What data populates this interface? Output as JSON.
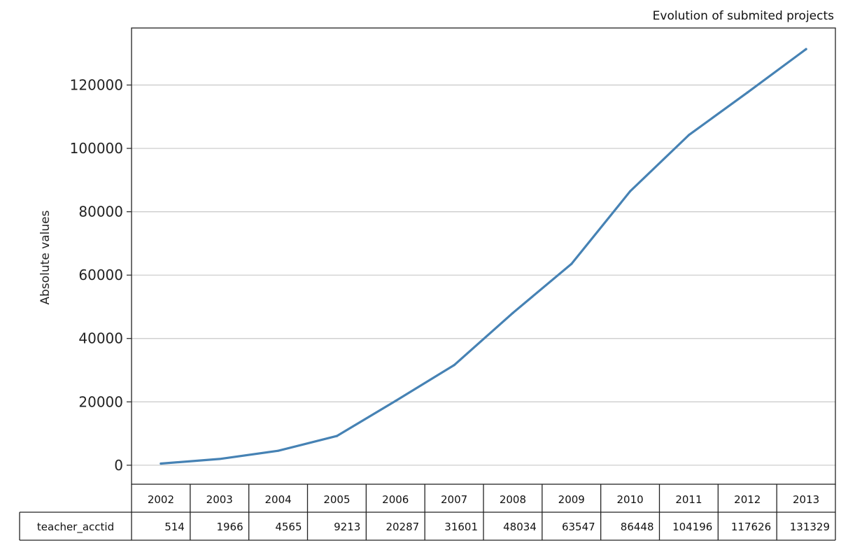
{
  "chart_data": {
    "type": "line",
    "title": "Evolution of submited projects",
    "xlabel": "",
    "ylabel": "Absolute values",
    "categories": [
      "2002",
      "2003",
      "2004",
      "2005",
      "2006",
      "2007",
      "2008",
      "2009",
      "2010",
      "2011",
      "2012",
      "2013"
    ],
    "series": [
      {
        "name": "teacher_acctid",
        "values": [
          514,
          1966,
          4565,
          9213,
          20287,
          31601,
          48034,
          63547,
          86448,
          104196,
          117626,
          131329
        ]
      }
    ],
    "ylim": [
      -6000,
      138000
    ],
    "yticks": [
      0,
      20000,
      40000,
      60000,
      80000,
      100000,
      120000
    ],
    "ytick_labels": [
      "0",
      "20000",
      "40000",
      "60000",
      "80000",
      "100000",
      "120000"
    ],
    "grid": "horizontal",
    "line_color": "#4682b4",
    "table": {
      "row_label": "teacher_acctid",
      "header": [
        "2002",
        "2003",
        "2004",
        "2005",
        "2006",
        "2007",
        "2008",
        "2009",
        "2010",
        "2011",
        "2012",
        "2013"
      ],
      "cells": [
        "514",
        "1966",
        "4565",
        "9213",
        "20287",
        "31601",
        "48034",
        "63547",
        "86448",
        "104196",
        "117626",
        "131329"
      ]
    }
  }
}
